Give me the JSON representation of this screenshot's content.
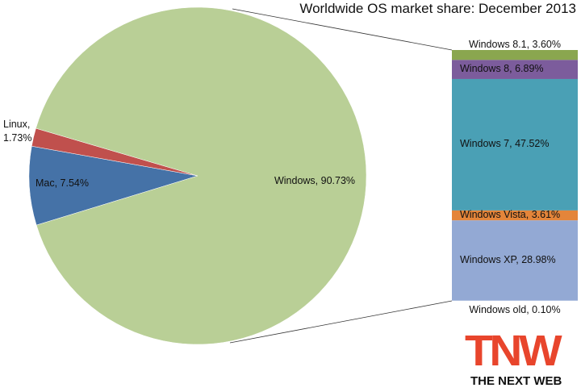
{
  "chart_data": [
    {
      "type": "pie",
      "title": "Worldwide OS market share: December 2013",
      "labels": [
        "Mac, 7.54%",
        "Linux, 1.73%",
        "Windows, 90.73%"
      ],
      "values": [
        7.54,
        1.73,
        90.73
      ],
      "colors": [
        "#4572a7",
        "#c0504d",
        "#b9cf96"
      ]
    },
    {
      "type": "stackedbar",
      "labels": [
        "Windows 8.1, 3.60%",
        "Windows 8, 6.89%",
        "Windows 7, 47.52%",
        "Windows Vista, 3.61%",
        "Windows XP, 28.98%",
        "Windows old, 0.10%"
      ],
      "values": [
        3.6,
        6.89,
        47.52,
        3.61,
        28.98,
        0.1
      ],
      "colors": [
        "#8aa64f",
        "#7c5c9c",
        "#4aa0b5",
        "#e4853a",
        "#93a9d4",
        "#c4d2e8"
      ]
    }
  ],
  "branding": {
    "logo": "TNW",
    "tagline": "THE NEXT WEB"
  }
}
